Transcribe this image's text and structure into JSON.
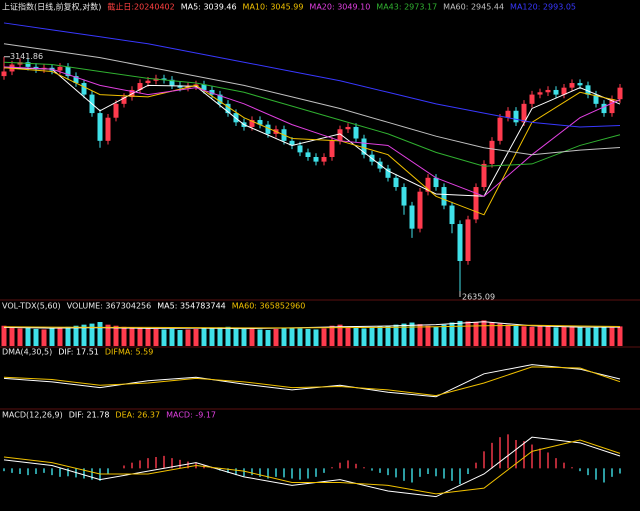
{
  "chart_data": [
    {
      "type": "candlestick",
      "title": "上证指数(日线,前复权,对数)",
      "subtitle": "截止日:20240402",
      "title_color": "#e8e8e8",
      "subtitle_color": "#ff4040",
      "up_color": "#ff3b4e",
      "down_color": "#3fe0e8",
      "ylim": [
        2620,
        3230
      ],
      "open": [
        3100,
        3110,
        3125,
        3130,
        3120,
        3115,
        3118,
        3112,
        3120,
        3100,
        3085,
        3060,
        3020,
        2960,
        3010,
        3040,
        3055,
        3070,
        3085,
        3090,
        3095,
        3092,
        3080,
        3075,
        3078,
        3082,
        3070,
        3060,
        3040,
        3020,
        3000,
        2990,
        3005,
        2995,
        2975,
        2985,
        2960,
        2950,
        2935,
        2925,
        2915,
        2925,
        2960,
        2985,
        2990,
        2965,
        2930,
        2915,
        2900,
        2880,
        2860,
        2820,
        2770,
        2850,
        2880,
        2860,
        2820,
        2780,
        2700,
        2790,
        2860,
        2910,
        2960,
        3010,
        3025,
        3000,
        3040,
        3060,
        3065,
        3070,
        3060,
        3075,
        3085,
        3080,
        3060,
        3040,
        3020,
        3050
      ],
      "high": [
        3141.86,
        3133,
        3138,
        3138,
        3128,
        3126,
        3126,
        3128,
        3128,
        3108,
        3093,
        3068,
        3028,
        3018,
        3048,
        3063,
        3078,
        3093,
        3098,
        3103,
        3103,
        3100,
        3088,
        3086,
        3090,
        3090,
        3078,
        3068,
        3048,
        3028,
        3008,
        3013,
        3013,
        3003,
        2993,
        2993,
        2968,
        2958,
        2943,
        2933,
        2933,
        2968,
        2993,
        2998,
        2998,
        2973,
        2938,
        2923,
        2908,
        2888,
        2868,
        2828,
        2858,
        2888,
        2888,
        2868,
        2828,
        2788,
        2798,
        2868,
        2918,
        2968,
        3018,
        3033,
        3033,
        3048,
        3068,
        3073,
        3078,
        3078,
        3083,
        3093,
        3093,
        3088,
        3068,
        3048,
        3058,
        3083
      ],
      "low": [
        3092,
        3102,
        3117,
        3112,
        3107,
        3107,
        3104,
        3104,
        3092,
        3077,
        3052,
        3012,
        2945,
        2952,
        3002,
        3032,
        3047,
        3062,
        3077,
        3082,
        3084,
        3072,
        3067,
        3067,
        3070,
        3062,
        3052,
        3032,
        3012,
        2992,
        2982,
        2982,
        2987,
        2967,
        2967,
        2952,
        2942,
        2927,
        2917,
        2907,
        2907,
        2917,
        2952,
        2977,
        2957,
        2922,
        2907,
        2892,
        2872,
        2852,
        2800,
        2750,
        2762,
        2842,
        2852,
        2812,
        2760,
        2635.09,
        2692,
        2782,
        2852,
        2902,
        2952,
        3002,
        2992,
        2992,
        3032,
        3052,
        3057,
        3052,
        3052,
        3067,
        3072,
        3052,
        3032,
        3012,
        3012,
        3042
      ],
      "close": [
        3110,
        3125,
        3130,
        3120,
        3115,
        3118,
        3112,
        3120,
        3100,
        3085,
        3060,
        3020,
        2960,
        3010,
        3040,
        3055,
        3070,
        3085,
        3090,
        3095,
        3092,
        3080,
        3075,
        3078,
        3082,
        3070,
        3060,
        3040,
        3020,
        3000,
        2990,
        3005,
        2995,
        2975,
        2985,
        2960,
        2950,
        2935,
        2925,
        2915,
        2925,
        2960,
        2985,
        2990,
        2965,
        2930,
        2915,
        2900,
        2880,
        2860,
        2820,
        2770,
        2850,
        2880,
        2860,
        2820,
        2780,
        2700,
        2790,
        2860,
        2910,
        2960,
        3010,
        3025,
        3000,
        3040,
        3060,
        3065,
        3070,
        3060,
        3075,
        3085,
        3080,
        3060,
        3040,
        3020,
        3050,
        3075
      ],
      "annotations": [
        "3141.86",
        "2635.09"
      ],
      "series": [
        {
          "name": "MA5",
          "label": "MA5: 3039.46",
          "color": "#ffffff",
          "x": [
            0,
            6,
            12,
            18,
            24,
            30,
            36,
            42,
            48,
            54,
            60,
            66,
            72,
            77
          ],
          "values": [
            3118,
            3115,
            3025,
            3080,
            3078,
            2995,
            2950,
            2975,
            2895,
            2845,
            2840,
            3030,
            3075,
            3039.46
          ]
        },
        {
          "name": "MA10",
          "label": "MA10: 3045.99",
          "color": "#f0c000",
          "x": [
            0,
            6,
            12,
            18,
            24,
            30,
            36,
            42,
            48,
            54,
            60,
            66,
            72,
            77
          ],
          "values": [
            3118,
            3110,
            3060,
            3055,
            3080,
            3010,
            2965,
            2960,
            2930,
            2840,
            2800,
            3000,
            3065,
            3045.99
          ]
        },
        {
          "name": "MA20",
          "label": "MA20: 3049.10",
          "color": "#e040e0",
          "x": [
            0,
            6,
            12,
            18,
            24,
            30,
            36,
            42,
            48,
            54,
            60,
            66,
            72,
            77
          ],
          "values": [
            3120,
            3115,
            3080,
            3060,
            3075,
            3040,
            2995,
            2960,
            2950,
            2880,
            2840,
            2930,
            3010,
            3049.1
          ]
        },
        {
          "name": "MA43",
          "label": "MA43: 2973.17",
          "color": "#30b030",
          "x": [
            0,
            6,
            12,
            18,
            24,
            30,
            36,
            42,
            48,
            54,
            60,
            66,
            72,
            77
          ],
          "values": [
            3130,
            3125,
            3110,
            3095,
            3085,
            3065,
            3035,
            3005,
            2975,
            2935,
            2905,
            2910,
            2950,
            2973.17
          ]
        },
        {
          "name": "MA60",
          "label": "MA60: 2945.44",
          "color": "#c0c0c0",
          "x": [
            0,
            6,
            12,
            18,
            24,
            30,
            36,
            42,
            48,
            54,
            60,
            66,
            72,
            77
          ],
          "values": [
            3170,
            3155,
            3140,
            3120,
            3100,
            3080,
            3055,
            3030,
            3000,
            2970,
            2945,
            2930,
            2940,
            2945.44
          ]
        },
        {
          "name": "MA120",
          "label": "MA120: 2993.05",
          "color": "#3838ff",
          "x": [
            0,
            6,
            12,
            18,
            24,
            30,
            36,
            42,
            48,
            54,
            60,
            66,
            72,
            77
          ],
          "values": [
            3215,
            3200,
            3185,
            3170,
            3150,
            3130,
            3110,
            3090,
            3065,
            3040,
            3020,
            3000,
            2990,
            2993.05
          ]
        }
      ]
    },
    {
      "type": "volume",
      "title": "VOL-TDX(5,60)",
      "title_color": "#e8e8e8",
      "label": "VOLUME: 367304256",
      "label_color": "#e8e8e8",
      "ylim": [
        0,
        600000000
      ],
      "values": [
        380000000,
        350000000,
        330000000,
        340000000,
        320000000,
        310000000,
        330000000,
        350000000,
        360000000,
        380000000,
        400000000,
        420000000,
        450000000,
        400000000,
        380000000,
        360000000,
        350000000,
        340000000,
        330000000,
        320000000,
        310000000,
        320000000,
        300000000,
        310000000,
        320000000,
        330000000,
        340000000,
        350000000,
        360000000,
        340000000,
        330000000,
        320000000,
        310000000,
        300000000,
        320000000,
        330000000,
        340000000,
        330000000,
        320000000,
        310000000,
        330000000,
        380000000,
        400000000,
        360000000,
        340000000,
        330000000,
        350000000,
        370000000,
        380000000,
        400000000,
        420000000,
        440000000,
        410000000,
        380000000,
        360000000,
        400000000,
        440000000,
        470000000,
        460000000,
        450000000,
        480000000,
        440000000,
        420000000,
        400000000,
        380000000,
        370000000,
        360000000,
        380000000,
        370000000,
        350000000,
        360000000,
        370000000,
        350000000,
        340000000,
        350000000,
        360000000,
        345000000,
        367304256
      ],
      "series": [
        {
          "name": "MA5",
          "label": "MA5: 354783744",
          "color": "#ffffff",
          "x": [
            0,
            6,
            12,
            18,
            24,
            30,
            36,
            42,
            48,
            54,
            60,
            66,
            72,
            77
          ],
          "values": [
            350000000,
            335000000,
            345000000,
            330000000,
            335000000,
            325000000,
            340000000,
            360000000,
            375000000,
            400000000,
            455000000,
            380000000,
            355000000,
            354783744
          ]
        },
        {
          "name": "MA60",
          "label": "MA60: 365852960",
          "color": "#f0c000",
          "x": [
            0,
            6,
            12,
            18,
            24,
            30,
            36,
            42,
            48,
            54,
            60,
            66,
            72,
            77
          ],
          "values": [
            360000000,
            355000000,
            350000000,
            350000000,
            345000000,
            340000000,
            340000000,
            345000000,
            350000000,
            360000000,
            380000000,
            390000000,
            375000000,
            365852960
          ]
        }
      ]
    },
    {
      "type": "line",
      "title": "DMA(4,30,5)",
      "title_color": "#e8e8e8",
      "ylim": [
        -100,
        100
      ],
      "series": [
        {
          "name": "DIF",
          "label": "DIF: 17.51",
          "color": "#ffffff",
          "x": [
            0,
            6,
            12,
            18,
            24,
            30,
            36,
            42,
            48,
            54,
            60,
            66,
            72,
            77
          ],
          "values": [
            20,
            5,
            -20,
            10,
            25,
            -5,
            -30,
            -10,
            -40,
            -60,
            40,
            80,
            60,
            17.51
          ]
        },
        {
          "name": "DIFMA",
          "label": "DIFMA: 5.59",
          "color": "#f0c000",
          "x": [
            0,
            6,
            12,
            18,
            24,
            30,
            36,
            42,
            48,
            54,
            60,
            66,
            72,
            77
          ],
          "values": [
            25,
            15,
            -10,
            0,
            20,
            5,
            -20,
            -15,
            -30,
            -55,
            0,
            70,
            65,
            5.59
          ]
        }
      ]
    },
    {
      "type": "macd",
      "title": "MACD(12,26,9)",
      "title_color": "#e8e8e8",
      "ylim": [
        -70,
        80
      ],
      "up_color": "#ff3b4e",
      "down_color": "#3fe0e8",
      "series": [
        {
          "name": "DIF",
          "label": "DIF: 21.78",
          "color": "#ffffff",
          "x": [
            0,
            6,
            12,
            18,
            24,
            30,
            36,
            42,
            48,
            54,
            60,
            66,
            72,
            77
          ],
          "values": [
            15,
            5,
            -20,
            -5,
            10,
            -15,
            -30,
            -20,
            -40,
            -50,
            -10,
            55,
            45,
            21.78
          ]
        },
        {
          "name": "DEA",
          "label": "DEA: 26.37",
          "color": "#f0c000",
          "x": [
            0,
            6,
            12,
            18,
            24,
            30,
            36,
            42,
            48,
            54,
            60,
            66,
            72,
            77
          ],
          "values": [
            20,
            10,
            -10,
            -10,
            5,
            -5,
            -25,
            -25,
            -30,
            -45,
            -35,
            30,
            50,
            26.37
          ]
        }
      ],
      "histogram": {
        "name": "MACD",
        "label": "MACD: -9.17",
        "color": "#e040e0",
        "values": [
          -5,
          -8,
          -10,
          -12,
          -10,
          -8,
          -12,
          -15,
          -14,
          -16,
          -18,
          -20,
          -22,
          -10,
          0,
          5,
          10,
          14,
          18,
          20,
          22,
          18,
          15,
          12,
          10,
          6,
          2,
          -4,
          -8,
          -12,
          -14,
          -12,
          -15,
          -18,
          -15,
          -16,
          -18,
          -20,
          -18,
          -15,
          -8,
          2,
          10,
          14,
          8,
          2,
          -4,
          -8,
          -12,
          -16,
          -22,
          -25,
          -15,
          -10,
          -14,
          -18,
          -22,
          -28,
          -10,
          10,
          30,
          45,
          55,
          60,
          50,
          48,
          42,
          35,
          28,
          18,
          10,
          2,
          -5,
          -12,
          -20,
          -25,
          -15,
          -9.17
        ]
      }
    }
  ]
}
